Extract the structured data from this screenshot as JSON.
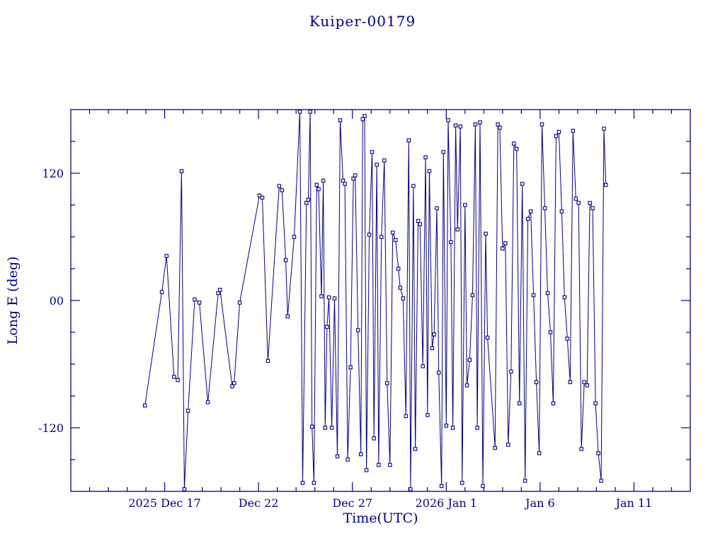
{
  "title": "Kuiper-00179",
  "chart_data": {
    "type": "line",
    "title": "Kuiper-00179",
    "xlabel": "Time(UTC)",
    "ylabel": "Long E (deg)",
    "ylim": [
      -180,
      180
    ],
    "y_major_ticks": [
      {
        "value": 120,
        "label": "120"
      },
      {
        "value": 0,
        "label": "00"
      },
      {
        "value": -120,
        "label": "-120"
      }
    ],
    "y_minor_step": 30,
    "x_range_days": [
      0,
      33
    ],
    "x_major_ticks": [
      {
        "day": 5,
        "label": "2025 Dec 17"
      },
      {
        "day": 10,
        "label": "Dec 22"
      },
      {
        "day": 15,
        "label": "Dec 27"
      },
      {
        "day": 20,
        "label": "2026 Jan 1"
      },
      {
        "day": 25,
        "label": "Jan 6"
      },
      {
        "day": 30,
        "label": "Jan 11"
      }
    ],
    "x_minor_step": 1,
    "marker": "square",
    "color": "#000080",
    "legend": "none",
    "grid": false,
    "series": [
      {
        "name": "Long E",
        "points": [
          [
            3.95,
            -99
          ],
          [
            4.85,
            8
          ],
          [
            5.1,
            42
          ],
          [
            5.5,
            -72
          ],
          [
            5.7,
            -75
          ],
          [
            5.9,
            122
          ],
          [
            6.05,
            -178
          ],
          [
            6.25,
            -104
          ],
          [
            6.6,
            1
          ],
          [
            6.85,
            -2
          ],
          [
            7.3,
            -96
          ],
          [
            7.85,
            7
          ],
          [
            7.95,
            10
          ],
          [
            8.6,
            -81
          ],
          [
            8.7,
            -78
          ],
          [
            9.0,
            -2
          ],
          [
            10.05,
            99
          ],
          [
            10.2,
            97
          ],
          [
            10.5,
            -57
          ],
          [
            11.1,
            108
          ],
          [
            11.25,
            104
          ],
          [
            11.45,
            38
          ],
          [
            11.55,
            -15
          ],
          [
            11.9,
            60
          ],
          [
            12.2,
            178
          ],
          [
            12.35,
            -172
          ],
          [
            12.55,
            92
          ],
          [
            12.65,
            95
          ],
          [
            12.75,
            178
          ],
          [
            12.85,
            -119
          ],
          [
            12.95,
            -172
          ],
          [
            13.1,
            109
          ],
          [
            13.2,
            105
          ],
          [
            13.35,
            4
          ],
          [
            13.45,
            113
          ],
          [
            13.55,
            -120
          ],
          [
            13.65,
            -25
          ],
          [
            13.75,
            3
          ],
          [
            13.9,
            -120
          ],
          [
            14.05,
            2
          ],
          [
            14.2,
            -147
          ],
          [
            14.35,
            170
          ],
          [
            14.5,
            113
          ],
          [
            14.6,
            110
          ],
          [
            14.75,
            -150
          ],
          [
            14.9,
            -63
          ],
          [
            15.05,
            115
          ],
          [
            15.15,
            118
          ],
          [
            15.3,
            -28
          ],
          [
            15.45,
            -145
          ],
          [
            15.55,
            171
          ],
          [
            15.65,
            174
          ],
          [
            15.75,
            -160
          ],
          [
            15.9,
            62
          ],
          [
            16.05,
            140
          ],
          [
            16.15,
            -130
          ],
          [
            16.3,
            128
          ],
          [
            16.4,
            -155
          ],
          [
            16.55,
            60
          ],
          [
            16.7,
            132
          ],
          [
            16.85,
            -78
          ],
          [
            17.0,
            -155
          ],
          [
            17.15,
            64
          ],
          [
            17.3,
            57
          ],
          [
            17.45,
            30
          ],
          [
            17.55,
            12
          ],
          [
            17.7,
            2
          ],
          [
            17.85,
            -109
          ],
          [
            18.0,
            151
          ],
          [
            18.1,
            -178
          ],
          [
            18.25,
            108
          ],
          [
            18.35,
            -140
          ],
          [
            18.5,
            75
          ],
          [
            18.6,
            72
          ],
          [
            18.75,
            -62
          ],
          [
            18.9,
            135
          ],
          [
            19.0,
            -108
          ],
          [
            19.1,
            122
          ],
          [
            19.25,
            -45
          ],
          [
            19.35,
            -32
          ],
          [
            19.5,
            87
          ],
          [
            19.6,
            -68
          ],
          [
            19.75,
            -175
          ],
          [
            19.85,
            140
          ],
          [
            20.0,
            -118
          ],
          [
            20.1,
            170
          ],
          [
            20.25,
            55
          ],
          [
            20.35,
            -120
          ],
          [
            20.5,
            165
          ],
          [
            20.6,
            67
          ],
          [
            20.75,
            164
          ],
          [
            20.85,
            -172
          ],
          [
            21.0,
            90
          ],
          [
            21.1,
            -80
          ],
          [
            21.25,
            -56
          ],
          [
            21.4,
            5
          ],
          [
            21.55,
            166
          ],
          [
            21.65,
            -120
          ],
          [
            21.8,
            168
          ],
          [
            21.95,
            -175
          ],
          [
            22.1,
            63
          ],
          [
            22.2,
            -35
          ],
          [
            22.6,
            -139
          ],
          [
            22.75,
            166
          ],
          [
            22.85,
            163
          ],
          [
            23.0,
            49
          ],
          [
            23.15,
            54
          ],
          [
            23.3,
            -136
          ],
          [
            23.45,
            -67
          ],
          [
            23.6,
            148
          ],
          [
            23.75,
            143
          ],
          [
            23.9,
            -97
          ],
          [
            24.05,
            110
          ],
          [
            24.2,
            -170
          ],
          [
            24.35,
            77
          ],
          [
            24.5,
            84
          ],
          [
            24.65,
            5
          ],
          [
            24.8,
            -77
          ],
          [
            24.95,
            -144
          ],
          [
            25.1,
            166
          ],
          [
            25.25,
            87
          ],
          [
            25.4,
            7
          ],
          [
            25.55,
            -30
          ],
          [
            25.7,
            -97
          ],
          [
            25.85,
            155
          ],
          [
            26.0,
            159
          ],
          [
            26.15,
            84
          ],
          [
            26.3,
            3
          ],
          [
            26.45,
            -36
          ],
          [
            26.6,
            -77
          ],
          [
            26.75,
            160
          ],
          [
            26.9,
            96
          ],
          [
            27.05,
            92
          ],
          [
            27.2,
            -140
          ],
          [
            27.35,
            -77
          ],
          [
            27.5,
            -80
          ],
          [
            27.65,
            92
          ],
          [
            27.8,
            87
          ],
          [
            27.95,
            -97
          ],
          [
            28.1,
            -144
          ],
          [
            28.25,
            -170
          ],
          [
            28.4,
            162
          ],
          [
            28.5,
            109
          ]
        ]
      }
    ]
  }
}
